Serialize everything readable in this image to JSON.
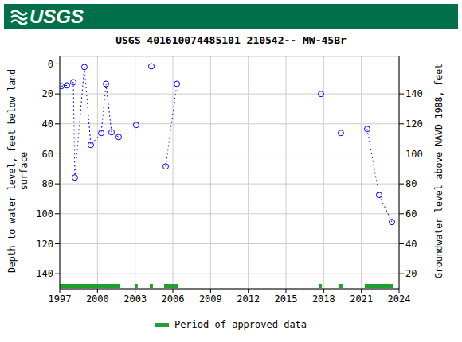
{
  "header": {
    "logo": "USGS",
    "color": "#00704a"
  },
  "chart_data": {
    "type": "scatter",
    "title": "USGS 401610074485101 210542-- MW-45Br",
    "y_label": "Depth to water level, feet below land surface",
    "y2_label": "Groundwater level above NAVD 1988, feet",
    "xlim": [
      1997,
      2024
    ],
    "xticks": [
      1997,
      2000,
      2003,
      2006,
      2009,
      2012,
      2015,
      2018,
      2021,
      2024
    ],
    "ylim": [
      150,
      -5
    ],
    "yticks": [
      0,
      20,
      40,
      60,
      80,
      100,
      120,
      140
    ],
    "y2lim": [
      10,
      165
    ],
    "y2ticks": [
      20,
      40,
      60,
      80,
      100,
      120,
      140
    ],
    "grid": true,
    "color": "#0000ff",
    "marker": "circle",
    "line_style": "dotted",
    "series": [
      {
        "x": [
          1997.13,
          1997.57,
          1998.08,
          1998.2,
          1998.96,
          1999.47,
          2000.3,
          2000.68,
          2001.12,
          2001.69
        ],
        "values": [
          14.8,
          14.3,
          12.2,
          75.8,
          2.1,
          54.1,
          46.1,
          13.3,
          45.6,
          48.8
        ]
      },
      {
        "x": [
          2003.08
        ],
        "values": [
          40.8
        ]
      },
      {
        "x": [
          2004.29
        ],
        "values": [
          1.6
        ]
      },
      {
        "x": [
          2005.43,
          2006.32
        ],
        "values": [
          68.4,
          13.3
        ]
      },
      {
        "x": [
          2017.79
        ],
        "values": [
          20.1
        ]
      },
      {
        "x": [
          2019.37
        ],
        "values": [
          46.1
        ]
      },
      {
        "x": [
          2021.46,
          2022.41,
          2023.43
        ],
        "values": [
          43.5,
          87.5,
          105.5
        ]
      }
    ],
    "approved_periods": {
      "name": "Period of approved data",
      "color": "#1f9f2f",
      "ranges": [
        [
          1997.0,
          2001.82
        ],
        [
          2002.96,
          2003.2
        ],
        [
          2004.16,
          2004.41
        ],
        [
          2005.3,
          2006.44
        ],
        [
          2017.6,
          2017.85
        ],
        [
          2019.24,
          2019.5
        ],
        [
          2021.27,
          2023.55
        ]
      ]
    }
  }
}
